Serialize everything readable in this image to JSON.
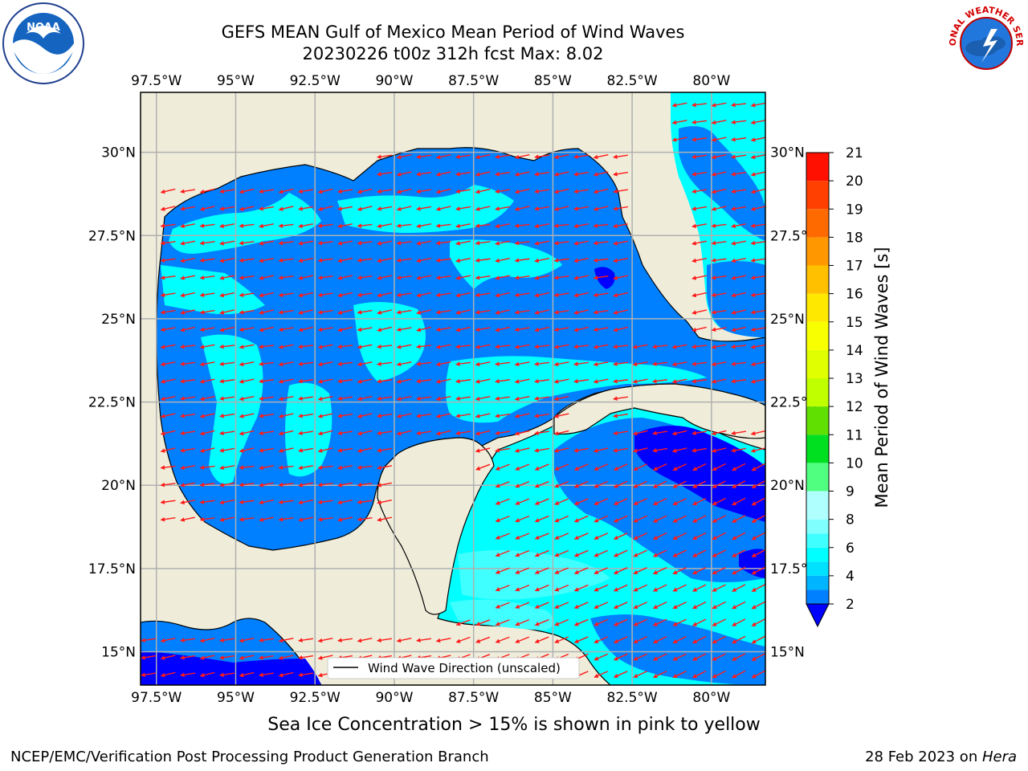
{
  "title": {
    "line1": "GEFS MEAN Gulf of Mexico Mean Period of Wind Waves",
    "line2": "20230226 t00z 312h fcst   Max: 8.02"
  },
  "map": {
    "lon_labels": [
      "97.5°W",
      "95°W",
      "92.5°W",
      "90°W",
      "87.5°W",
      "85°W",
      "82.5°W",
      "80°W"
    ],
    "lat_labels": [
      "30°N",
      "27.5°N",
      "25°N",
      "22.5°N",
      "20°N",
      "17.5°N",
      "15°N"
    ],
    "lon_values": [
      -97.5,
      -95,
      -92.5,
      -90,
      -87.5,
      -85,
      -82.5,
      -80
    ],
    "lat_values": [
      30,
      27.5,
      25,
      22.5,
      20,
      17.5,
      15
    ],
    "extent": {
      "lon_min": -98.0,
      "lon_max": -78.3,
      "lat_min": 14.0,
      "lat_max": 31.8
    },
    "legend_label": "Wind Wave Direction (unscaled)",
    "land_color": "#efedda",
    "arrow_color": "#ff1a1a",
    "arrow_direction": "westward (trade winds), turning southwest over the Caribbean"
  },
  "colorbar": {
    "label": "Mean Period of Wind Waves [s]",
    "ticks": [
      "2",
      "4",
      "6",
      "8",
      "9",
      "10",
      "11",
      "12",
      "13",
      "14",
      "15",
      "16",
      "17",
      "18",
      "19",
      "20",
      "21"
    ],
    "bands": [
      {
        "from": 2,
        "to": 3,
        "color": "#0080ff"
      },
      {
        "from": 3,
        "to": 4,
        "color": "#00b4ff"
      },
      {
        "from": 4,
        "to": 5,
        "color": "#00e0ff"
      },
      {
        "from": 5,
        "to": 6,
        "color": "#00ffff"
      },
      {
        "from": 6,
        "to": 7,
        "color": "#40ffff"
      },
      {
        "from": 7,
        "to": 8,
        "color": "#80ffff"
      },
      {
        "from": 8,
        "to": 9,
        "color": "#b0ffff"
      },
      {
        "from": 9,
        "to": 10,
        "color": "#50ff80"
      },
      {
        "from": 10,
        "to": 11,
        "color": "#00e020"
      },
      {
        "from": 11,
        "to": 12,
        "color": "#60e000"
      },
      {
        "from": 12,
        "to": 13,
        "color": "#c0ff00"
      },
      {
        "from": 13,
        "to": 14,
        "color": "#e0ff00"
      },
      {
        "from": 14,
        "to": 15,
        "color": "#f8ff00"
      },
      {
        "from": 15,
        "to": 16,
        "color": "#ffe800"
      },
      {
        "from": 16,
        "to": 17,
        "color": "#ffc000"
      },
      {
        "from": 17,
        "to": 18,
        "color": "#ff9800"
      },
      {
        "from": 18,
        "to": 19,
        "color": "#ff6a00"
      },
      {
        "from": 19,
        "to": 20,
        "color": "#ff4000"
      },
      {
        "from": 20,
        "to": 21,
        "color": "#ff1000"
      }
    ],
    "under_color": "#0000ff"
  },
  "caption": "Sea Ice Concentration > 15% is shown in pink to yellow",
  "footer": {
    "left": "NCEP/EMC/Verification Post Processing Product Generation Branch",
    "right_date": "28 Feb 2023 on ",
    "right_host": "Hera"
  },
  "logos": {
    "noaa": {
      "icon": "noaa-logo-icon",
      "text": "NOAA"
    },
    "nws": {
      "icon": "nws-logo-icon",
      "text": "NATIONAL WEATHER SERVICE"
    }
  }
}
